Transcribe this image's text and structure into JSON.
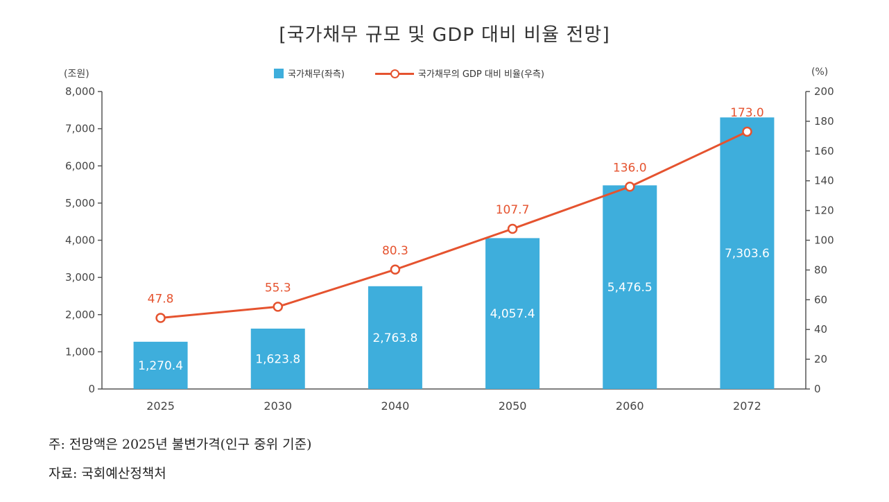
{
  "title": "[국가채무 규모 및 GDP 대비 비율 전망]",
  "left_unit": "(조원)",
  "right_unit": "(%)",
  "legend": {
    "bar": "국가채무(좌측)",
    "line": "국가채무의 GDP 대비 비율(우측)"
  },
  "notes": {
    "note1": "주: 전망액은 2025년 불변가격(인구 중위 기준)",
    "note2": "자료: 국회예산정책처"
  },
  "colors": {
    "bar": "#3eaedc",
    "line": "#e5532f",
    "axis": "#555555"
  },
  "chart_data": {
    "type": "bar",
    "title": "[국가채무 규모 및 GDP 대비 비율 전망]",
    "categories": [
      "2025",
      "2030",
      "2040",
      "2050",
      "2060",
      "2072"
    ],
    "series": [
      {
        "name": "국가채무(좌측)",
        "type": "bar",
        "axis": "left",
        "values": [
          1270.4,
          1623.8,
          2763.8,
          4057.4,
          5476.5,
          7303.6
        ],
        "labels": [
          "1,270.4",
          "1,623.8",
          "2,763.8",
          "4,057.4",
          "5,476.5",
          "7,303.6"
        ]
      },
      {
        "name": "국가채무의 GDP 대비 비율(우측)",
        "type": "line",
        "axis": "right",
        "values": [
          47.8,
          55.3,
          80.3,
          107.7,
          136.0,
          173.0
        ],
        "labels": [
          "47.8",
          "55.3",
          "80.3",
          "107.7",
          "136.0",
          "173.0"
        ]
      }
    ],
    "left_axis": {
      "ylim": [
        0,
        8000
      ],
      "ticks": [
        "0",
        "1,000",
        "2,000",
        "3,000",
        "4,000",
        "5,000",
        "6,000",
        "7,000",
        "8,000"
      ]
    },
    "right_axis": {
      "ylim": [
        0,
        200
      ],
      "ticks": [
        "0",
        "20",
        "40",
        "60",
        "80",
        "100",
        "120",
        "140",
        "160",
        "180",
        "200"
      ]
    },
    "grid": false,
    "legend_position": "top"
  }
}
